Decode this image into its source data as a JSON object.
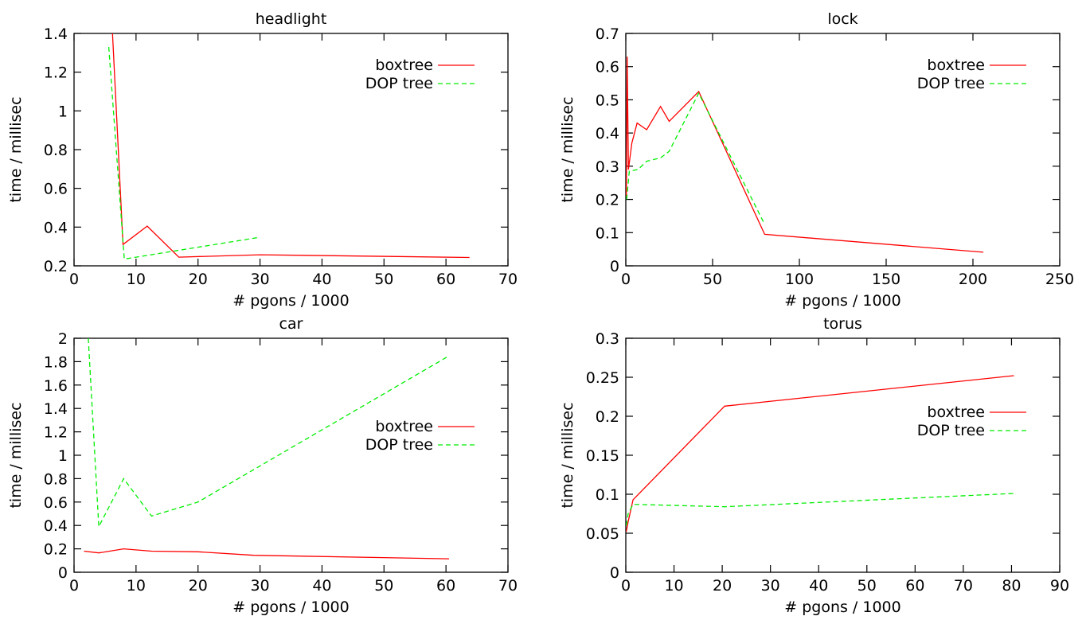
{
  "chart_data": [
    {
      "type": "line",
      "title": "headlight",
      "xlabel": "# pgons / 1000",
      "ylabel": "time / millisec",
      "xlim": [
        0,
        70
      ],
      "ylim": [
        0.2,
        1.4
      ],
      "xticks": [
        0,
        10,
        20,
        30,
        40,
        50,
        60,
        70
      ],
      "yticks": [
        0.2,
        0.4,
        0.6,
        0.8,
        1,
        1.2,
        1.4
      ],
      "xtick_labels": [
        "0",
        "10",
        "20",
        "30",
        "40",
        "50",
        "60",
        "70"
      ],
      "ytick_labels": [
        "0.2",
        "0.4",
        "0.6",
        "0.8",
        "1",
        "1.2",
        "1.4"
      ],
      "legend": "top-right",
      "grid": false,
      "series": [
        {
          "name": "boxtree",
          "color": "#ff0000",
          "dash": "solid",
          "x": [
            6.2,
            7.9,
            11.8,
            16.9,
            30,
            63.8
          ],
          "y": [
            1.4,
            0.31,
            0.405,
            0.245,
            0.257,
            0.243
          ]
        },
        {
          "name": "DOP tree",
          "color": "#00ee00",
          "dash": "dashed",
          "x": [
            5.6,
            8.1,
            29.5
          ],
          "y": [
            1.33,
            0.235,
            0.345
          ]
        }
      ]
    },
    {
      "type": "line",
      "title": "lock",
      "xlabel": "# pgons / 1000",
      "ylabel": "time / millisec",
      "xlim": [
        0,
        250
      ],
      "ylim": [
        0,
        0.7
      ],
      "xticks": [
        0,
        50,
        100,
        150,
        200,
        250
      ],
      "yticks": [
        0,
        0.1,
        0.2,
        0.3,
        0.4,
        0.5,
        0.6,
        0.7
      ],
      "xtick_labels": [
        "0",
        "50",
        "100",
        "150",
        "200",
        "250"
      ],
      "ytick_labels": [
        "0",
        "0.1",
        "0.2",
        "0.3",
        "0.4",
        "0.5",
        "0.6",
        "0.7"
      ],
      "legend": "top-right",
      "grid": false,
      "series": [
        {
          "name": "boxtree",
          "color": "#ff0000",
          "dash": "solid",
          "x": [
            0.3,
            0.8,
            1.5,
            3.5,
            6.5,
            12,
            20,
            25,
            42,
            80,
            206
          ],
          "y": [
            0.21,
            0.63,
            0.29,
            0.37,
            0.43,
            0.41,
            0.48,
            0.435,
            0.525,
            0.095,
            0.041
          ]
        },
        {
          "name": "DOP tree",
          "color": "#00ee00",
          "dash": "dashed",
          "x": [
            0.5,
            2,
            7,
            12,
            20,
            25,
            42,
            80
          ],
          "y": [
            0.2,
            0.285,
            0.29,
            0.315,
            0.325,
            0.345,
            0.52,
            0.125
          ]
        }
      ]
    },
    {
      "type": "line",
      "title": "car",
      "xlabel": "# pgons / 1000",
      "ylabel": "time / millisec",
      "xlim": [
        0,
        70
      ],
      "ylim": [
        0,
        2
      ],
      "xticks": [
        0,
        10,
        20,
        30,
        40,
        50,
        60,
        70
      ],
      "yticks": [
        0,
        0.2,
        0.4,
        0.6,
        0.8,
        1,
        1.2,
        1.4,
        1.6,
        1.8,
        2
      ],
      "xtick_labels": [
        "0",
        "10",
        "20",
        "30",
        "40",
        "50",
        "60",
        "70"
      ],
      "ytick_labels": [
        "0",
        "0.2",
        "0.4",
        "0.6",
        "0.8",
        "1",
        "1.2",
        "1.4",
        "1.6",
        "1.8",
        "2"
      ],
      "legend": "right",
      "grid": false,
      "series": [
        {
          "name": "boxtree",
          "color": "#ff0000",
          "dash": "solid",
          "x": [
            1.6,
            4,
            8,
            12.5,
            20,
            29,
            60.5
          ],
          "y": [
            0.18,
            0.165,
            0.2,
            0.18,
            0.175,
            0.145,
            0.115
          ]
        },
        {
          "name": "DOP tree",
          "color": "#00ee00",
          "dash": "dashed",
          "x": [
            2.3,
            4,
            8,
            12.5,
            20,
            60.5
          ],
          "y": [
            2,
            0.39,
            0.8,
            0.48,
            0.6,
            1.85
          ]
        }
      ]
    },
    {
      "type": "line",
      "title": "torus",
      "xlabel": "# pgons / 1000",
      "ylabel": "time / millisec",
      "xlim": [
        0,
        90
      ],
      "ylim": [
        0,
        0.3
      ],
      "xticks": [
        0,
        10,
        20,
        30,
        40,
        50,
        60,
        70,
        80,
        90
      ],
      "yticks": [
        0,
        0.05,
        0.1,
        0.15,
        0.2,
        0.25,
        0.3
      ],
      "xtick_labels": [
        "0",
        "10",
        "20",
        "30",
        "40",
        "50",
        "60",
        "70",
        "80",
        "90"
      ],
      "ytick_labels": [
        "0",
        "0.05",
        "0.1",
        "0.15",
        "0.2",
        "0.25",
        "0.3"
      ],
      "legend": "right",
      "grid": false,
      "series": [
        {
          "name": "boxtree",
          "color": "#ff0000",
          "dash": "solid",
          "x": [
            0.1,
            0.5,
            1.5,
            20.5,
            80.5
          ],
          "y": [
            0.052,
            0.065,
            0.093,
            0.213,
            0.252
          ]
        },
        {
          "name": "DOP tree",
          "color": "#00ee00",
          "dash": "dashed",
          "x": [
            0.1,
            0.5,
            1.5,
            20.5,
            80.5
          ],
          "y": [
            0.06,
            0.075,
            0.087,
            0.084,
            0.101
          ]
        }
      ]
    }
  ]
}
